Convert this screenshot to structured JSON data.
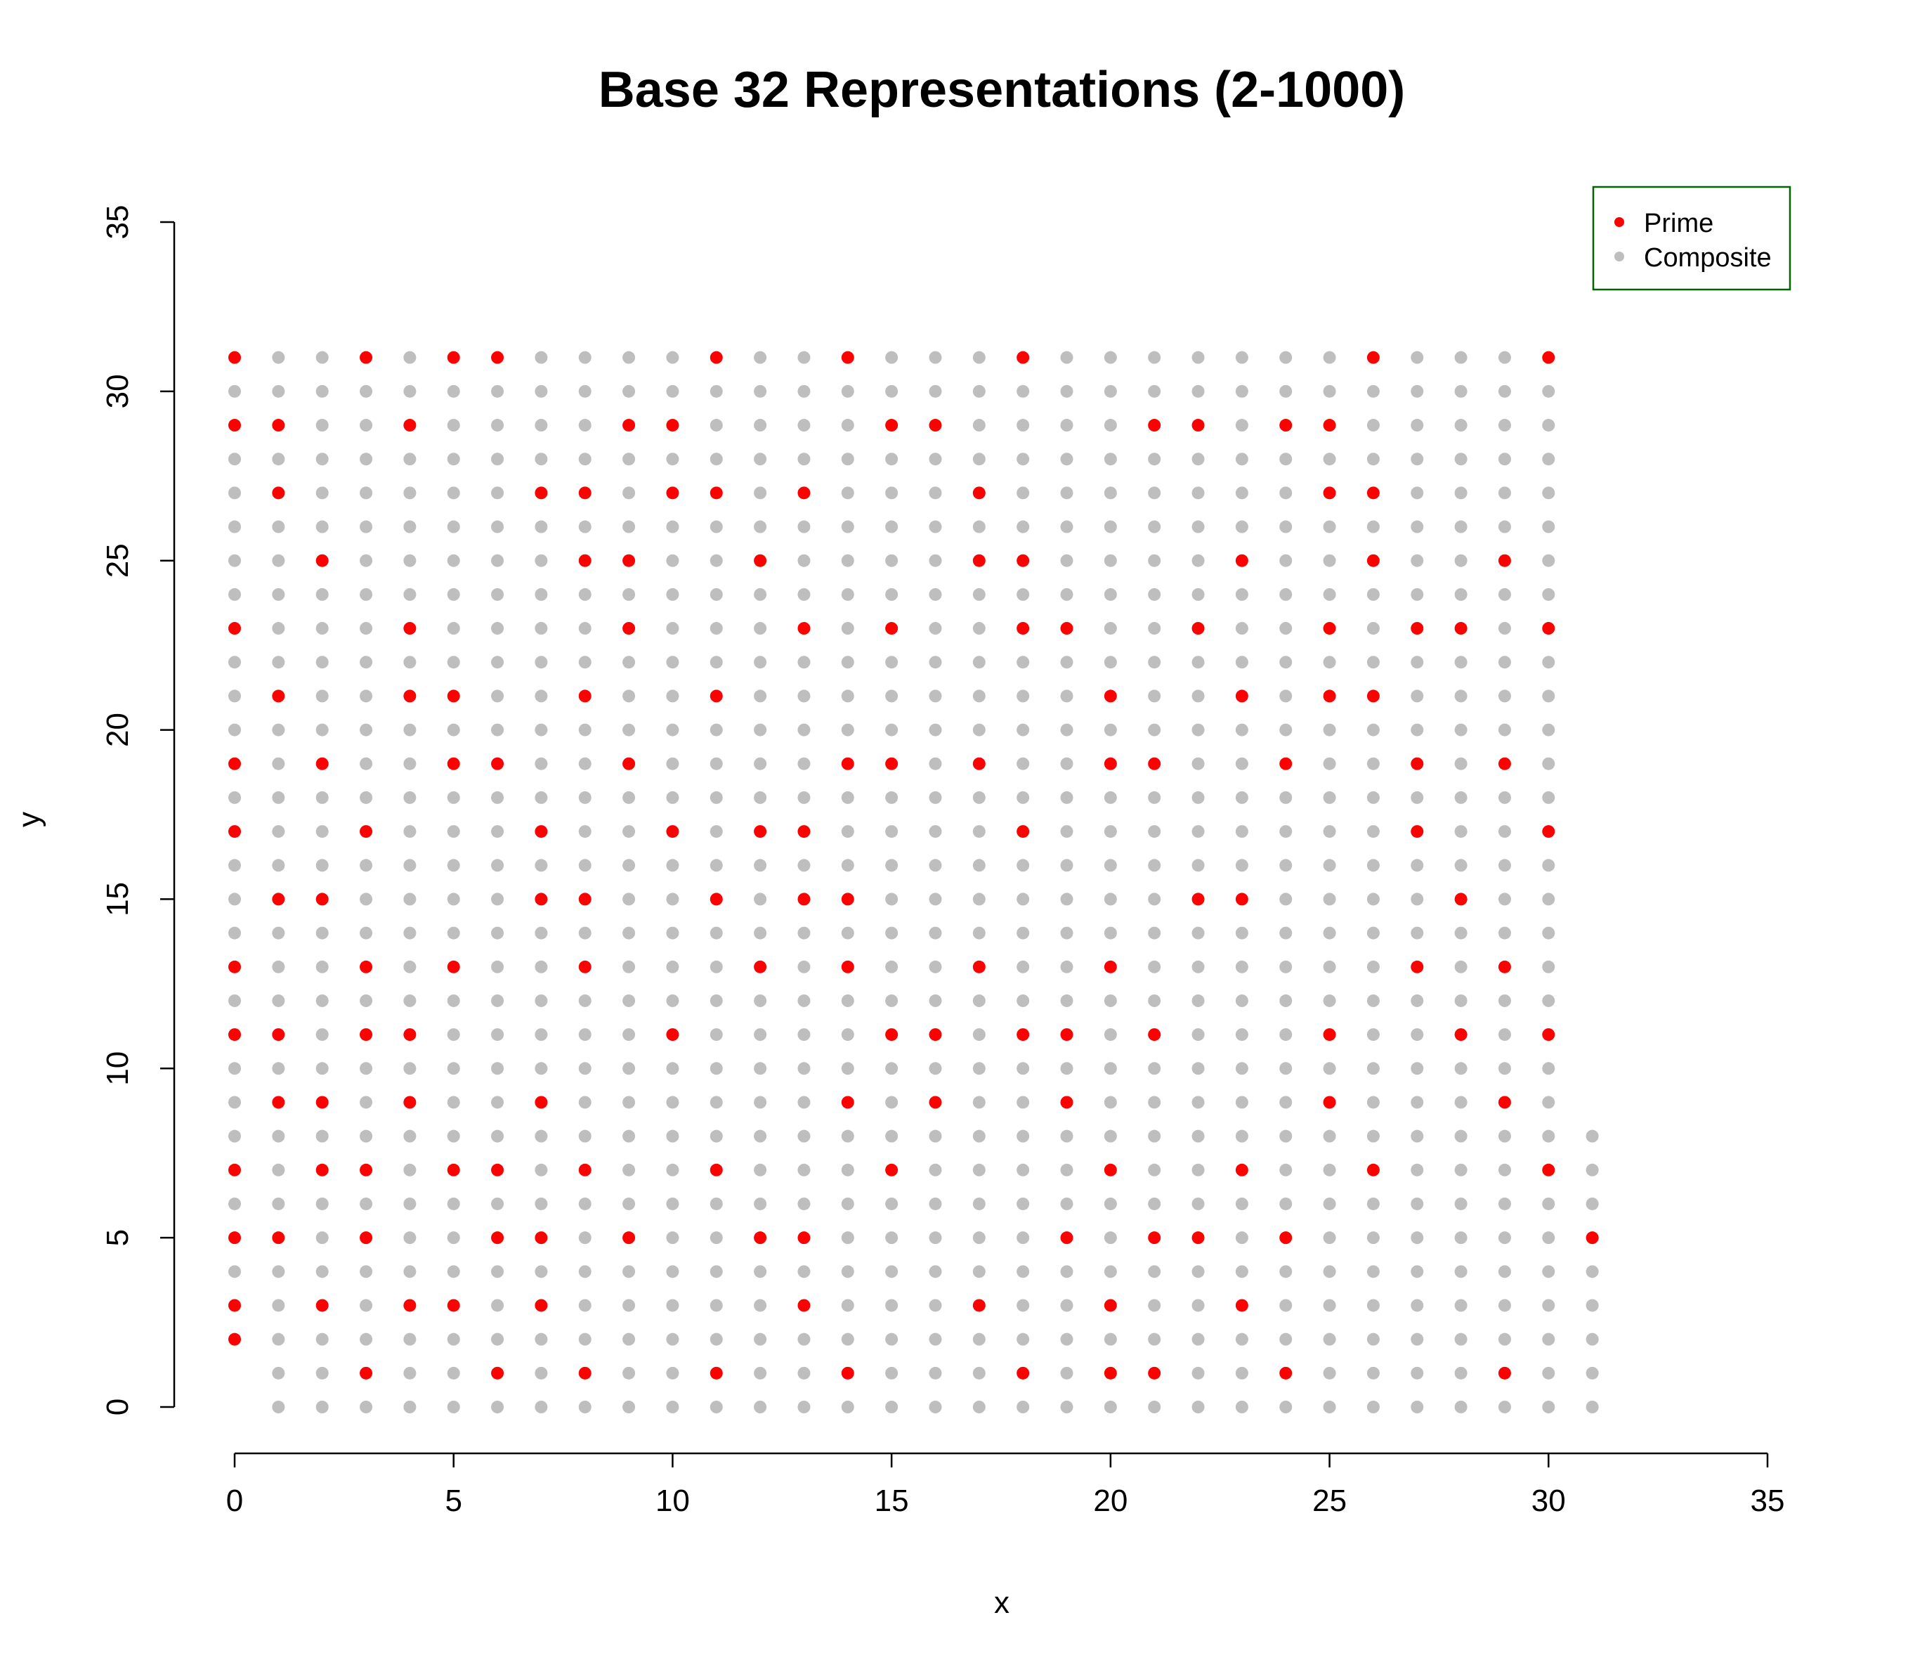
{
  "chart_data": {
    "type": "scatter",
    "title": "Base 32 Representations (2-1000)",
    "xlabel": "x",
    "ylabel": "y",
    "xlim": [
      0,
      35
    ],
    "ylim": [
      0,
      35
    ],
    "x_ticks": [
      0,
      5,
      10,
      15,
      20,
      25,
      30,
      35
    ],
    "y_ticks": [
      0,
      5,
      10,
      15,
      20,
      25,
      30,
      35
    ],
    "base": 32,
    "range": [
      2,
      1000
    ],
    "point_rule": "n = 32*x + y",
    "grid": false,
    "legend_position": "top-right",
    "series": [
      {
        "name": "Prime",
        "color": "#ff0000",
        "points": [
          [
            0,
            2
          ],
          [
            0,
            3
          ],
          [
            0,
            5
          ],
          [
            0,
            7
          ],
          [
            0,
            11
          ],
          [
            0,
            13
          ],
          [
            0,
            17
          ],
          [
            0,
            19
          ],
          [
            0,
            23
          ],
          [
            0,
            29
          ],
          [
            0,
            31
          ],
          [
            1,
            5
          ],
          [
            1,
            9
          ],
          [
            1,
            11
          ],
          [
            1,
            15
          ],
          [
            1,
            21
          ],
          [
            1,
            27
          ],
          [
            1,
            29
          ],
          [
            2,
            3
          ],
          [
            2,
            7
          ],
          [
            2,
            9
          ],
          [
            2,
            15
          ],
          [
            2,
            19
          ],
          [
            2,
            25
          ],
          [
            3,
            1
          ],
          [
            3,
            5
          ],
          [
            3,
            7
          ],
          [
            3,
            11
          ],
          [
            3,
            13
          ],
          [
            3,
            17
          ],
          [
            3,
            31
          ],
          [
            4,
            3
          ],
          [
            4,
            9
          ],
          [
            4,
            11
          ],
          [
            4,
            21
          ],
          [
            4,
            23
          ],
          [
            4,
            29
          ],
          [
            5,
            3
          ],
          [
            5,
            7
          ],
          [
            5,
            13
          ],
          [
            5,
            19
          ],
          [
            5,
            21
          ],
          [
            5,
            31
          ],
          [
            6,
            1
          ],
          [
            6,
            5
          ],
          [
            6,
            7
          ],
          [
            6,
            19
          ],
          [
            6,
            31
          ],
          [
            7,
            3
          ],
          [
            7,
            5
          ],
          [
            7,
            9
          ],
          [
            7,
            15
          ],
          [
            7,
            17
          ],
          [
            7,
            27
          ],
          [
            8,
            1
          ],
          [
            8,
            7
          ],
          [
            8,
            13
          ],
          [
            8,
            15
          ],
          [
            8,
            21
          ],
          [
            8,
            25
          ],
          [
            8,
            27
          ],
          [
            9,
            5
          ],
          [
            9,
            19
          ],
          [
            9,
            23
          ],
          [
            9,
            25
          ],
          [
            9,
            29
          ],
          [
            10,
            11
          ],
          [
            10,
            17
          ],
          [
            10,
            27
          ],
          [
            10,
            29
          ],
          [
            11,
            1
          ],
          [
            11,
            7
          ],
          [
            11,
            15
          ],
          [
            11,
            21
          ],
          [
            11,
            27
          ],
          [
            11,
            31
          ],
          [
            12,
            5
          ],
          [
            12,
            13
          ],
          [
            12,
            17
          ],
          [
            12,
            25
          ],
          [
            13,
            3
          ],
          [
            13,
            5
          ],
          [
            13,
            15
          ],
          [
            13,
            17
          ],
          [
            13,
            23
          ],
          [
            13,
            27
          ],
          [
            14,
            1
          ],
          [
            14,
            9
          ],
          [
            14,
            13
          ],
          [
            14,
            15
          ],
          [
            14,
            19
          ],
          [
            14,
            31
          ],
          [
            15,
            7
          ],
          [
            15,
            11
          ],
          [
            15,
            19
          ],
          [
            15,
            23
          ],
          [
            15,
            29
          ],
          [
            16,
            9
          ],
          [
            16,
            11
          ],
          [
            16,
            29
          ],
          [
            17,
            3
          ],
          [
            17,
            13
          ],
          [
            17,
            19
          ],
          [
            17,
            25
          ],
          [
            17,
            27
          ],
          [
            18,
            1
          ],
          [
            18,
            11
          ],
          [
            18,
            17
          ],
          [
            18,
            23
          ],
          [
            18,
            25
          ],
          [
            18,
            31
          ],
          [
            19,
            5
          ],
          [
            19,
            9
          ],
          [
            19,
            11
          ],
          [
            19,
            23
          ],
          [
            20,
            1
          ],
          [
            20,
            3
          ],
          [
            20,
            7
          ],
          [
            20,
            13
          ],
          [
            20,
            19
          ],
          [
            20,
            21
          ],
          [
            21,
            1
          ],
          [
            21,
            5
          ],
          [
            21,
            11
          ],
          [
            21,
            19
          ],
          [
            21,
            29
          ],
          [
            22,
            5
          ],
          [
            22,
            15
          ],
          [
            22,
            23
          ],
          [
            22,
            29
          ],
          [
            23,
            3
          ],
          [
            23,
            7
          ],
          [
            23,
            15
          ],
          [
            23,
            21
          ],
          [
            23,
            25
          ],
          [
            24,
            1
          ],
          [
            24,
            5
          ],
          [
            24,
            19
          ],
          [
            24,
            29
          ],
          [
            25,
            9
          ],
          [
            25,
            11
          ],
          [
            25,
            21
          ],
          [
            25,
            23
          ],
          [
            25,
            27
          ],
          [
            25,
            29
          ],
          [
            26,
            7
          ],
          [
            26,
            21
          ],
          [
            26,
            25
          ],
          [
            26,
            27
          ],
          [
            26,
            31
          ],
          [
            27,
            13
          ],
          [
            27,
            17
          ],
          [
            27,
            19
          ],
          [
            27,
            23
          ],
          [
            28,
            11
          ],
          [
            28,
            15
          ],
          [
            28,
            23
          ],
          [
            29,
            1
          ],
          [
            29,
            9
          ],
          [
            29,
            13
          ],
          [
            29,
            19
          ],
          [
            29,
            25
          ],
          [
            30,
            7
          ],
          [
            30,
            11
          ],
          [
            30,
            17
          ],
          [
            30,
            23
          ],
          [
            30,
            31
          ],
          [
            31,
            5
          ]
        ]
      },
      {
        "name": "Composite",
        "color": "#bebebe",
        "rule": "all other n in [2, 1000]: x = floor(n / 32), y = n mod 32"
      }
    ]
  },
  "legend": {
    "border_color": "#006400",
    "items": [
      {
        "label": "Prime",
        "color": "#ff0000"
      },
      {
        "label": "Composite",
        "color": "#bebebe"
      }
    ]
  }
}
